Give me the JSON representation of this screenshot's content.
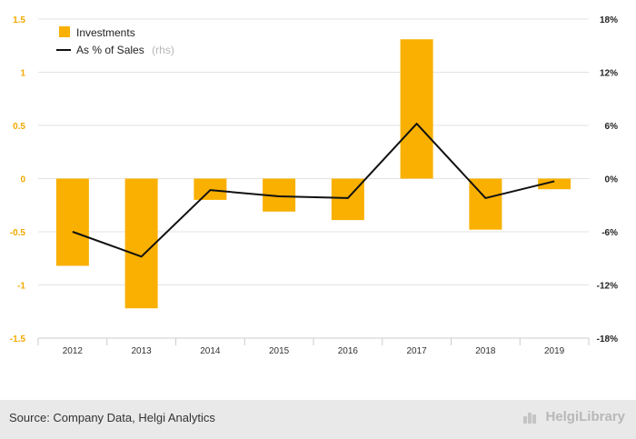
{
  "chart_data": {
    "type": "bar",
    "categories": [
      "2012",
      "2013",
      "2014",
      "2015",
      "2016",
      "2017",
      "2018",
      "2019"
    ],
    "series": [
      {
        "name": "Investments",
        "type": "bar",
        "axis": "left",
        "color": "#f9b000",
        "values": [
          -0.82,
          -1.22,
          -0.2,
          -0.31,
          -0.39,
          1.31,
          -0.48,
          -0.1
        ]
      },
      {
        "name": "As % of Sales",
        "type": "line",
        "axis": "right",
        "color": "#111111",
        "values": [
          -6.0,
          -8.8,
          -1.3,
          -2.0,
          -2.2,
          6.2,
          -2.2,
          -0.3
        ]
      }
    ],
    "ylim_left": [
      -1.5,
      1.5
    ],
    "yticks_left": [
      "1.5",
      "1",
      "0.5",
      "0",
      "-0.5",
      "-1",
      "-1.5"
    ],
    "ylim_right": [
      -18,
      18
    ],
    "yticks_right": [
      "18%",
      "12%",
      "6%",
      "0%",
      "-6%",
      "-12%",
      "-18%"
    ],
    "legend": {
      "position": "top-left",
      "rhs_note": "(rhs)"
    },
    "grid": true
  },
  "footer": {
    "source": "Source: Company Data, Helgi Analytics",
    "logo": "HelgiLibrary"
  }
}
